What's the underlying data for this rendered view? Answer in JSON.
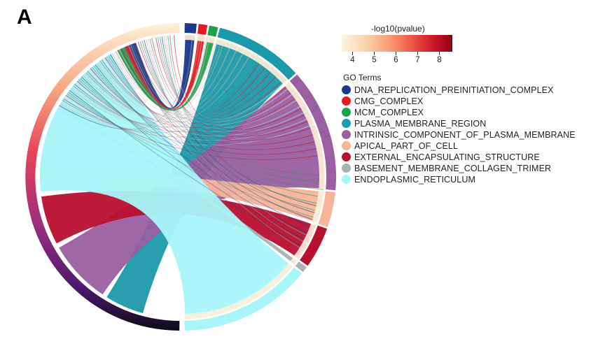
{
  "panel_label": "A",
  "colors": {
    "DNA_REPLICATION_PREINITIATION_COMPLEX": "#1b3a8c",
    "CMG_COMPLEX": "#e8191e",
    "MCM_COMPLEX": "#1da24a",
    "PLASMA_MEMBRANE_REGION": "#1b9aab",
    "INTRINSIC_COMPONENT_OF_PLASMA_MEMBRANE": "#9a5fa0",
    "APICAL_PART_OF_CELL": "#f8b49a",
    "EXTERNAL_ENCAPSULATING_STRUCTURE": "#b8102e",
    "BASEMENT_MEMBRANE_COLLAGEN_TRIMER": "#a9b1b3",
    "ENDOPLASMIC_RETICULUM": "#a8f5fb"
  },
  "chart_data": {
    "type": "chord",
    "legend_title": "GO Terms",
    "terms": [
      {
        "name": "DNA_REPLICATION_PREINITIATION_COMPLEX",
        "color": "#1b3a8c",
        "size": 4
      },
      {
        "name": "CMG_COMPLEX",
        "color": "#e8191e",
        "size": 3
      },
      {
        "name": "MCM_COMPLEX",
        "color": "#1da24a",
        "size": 3
      },
      {
        "name": "PLASMA_MEMBRANE_REGION",
        "color": "#1b9aab",
        "size": 30
      },
      {
        "name": "INTRINSIC_COMPONENT_OF_PLASMA_MEMBRANE",
        "color": "#9a5fa0",
        "size": 42
      },
      {
        "name": "APICAL_PART_OF_CELL",
        "color": "#f8b49a",
        "size": 12
      },
      {
        "name": "EXTERNAL_ENCAPSULATING_STRUCTURE",
        "color": "#b8102e",
        "size": 14
      },
      {
        "name": "BASEMENT_MEMBRANE_COLLAGEN_TRIMER",
        "color": "#a9b1b3",
        "size": 2
      },
      {
        "name": "ENDOPLASMIC_RETICULUM",
        "color": "#a8f5fb",
        "size": 45
      }
    ],
    "colorbar": {
      "title": "-log10(pvalue)",
      "ticks": [
        4,
        5,
        6,
        7,
        8
      ],
      "range": [
        3.5,
        8.6
      ]
    }
  }
}
